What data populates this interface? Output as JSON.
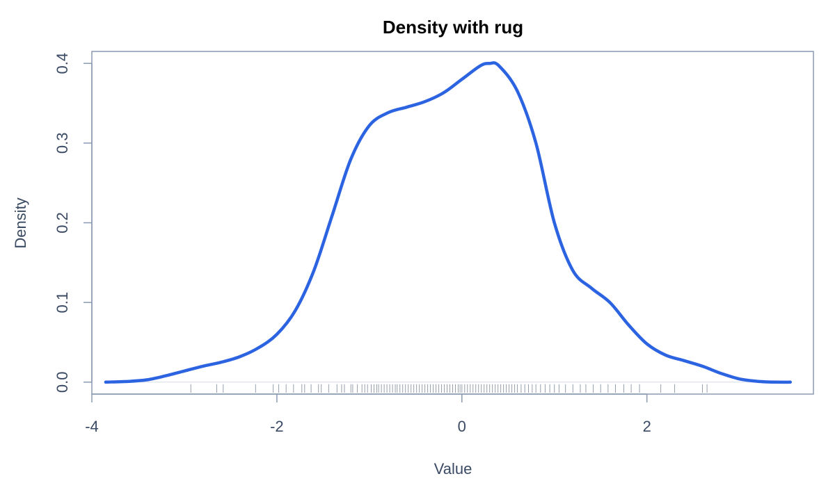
{
  "chart_data": {
    "type": "area",
    "title": "Density with rug",
    "xlabel": "Value",
    "ylabel": "Density",
    "xlim": [
      -4.0,
      3.8
    ],
    "ylim": [
      -0.015,
      0.415
    ],
    "x_ticks": [
      -4,
      -2,
      0,
      2
    ],
    "x_tick_labels": [
      "-4",
      "-2",
      "0",
      "2"
    ],
    "y_ticks": [
      0.0,
      0.1,
      0.2,
      0.3,
      0.4
    ],
    "y_tick_labels": [
      "0.0",
      "0.1",
      "0.2",
      "0.3",
      "0.4"
    ],
    "grid": false,
    "series": [
      {
        "color": "#2b63e0",
        "x": [
          -3.85,
          -3.6,
          -3.4,
          -3.2,
          -3.0,
          -2.8,
          -2.6,
          -2.4,
          -2.2,
          -2.0,
          -1.8,
          -1.6,
          -1.4,
          -1.2,
          -1.0,
          -0.8,
          -0.6,
          -0.4,
          -0.2,
          0.0,
          0.2,
          0.3,
          0.4,
          0.6,
          0.8,
          1.0,
          1.2,
          1.4,
          1.6,
          1.8,
          2.0,
          2.2,
          2.4,
          2.6,
          2.8,
          3.0,
          3.2,
          3.4,
          3.55
        ],
        "y": [
          0.0,
          0.001,
          0.003,
          0.008,
          0.014,
          0.02,
          0.025,
          0.032,
          0.043,
          0.06,
          0.09,
          0.14,
          0.21,
          0.28,
          0.322,
          0.338,
          0.345,
          0.352,
          0.363,
          0.38,
          0.397,
          0.4,
          0.397,
          0.365,
          0.3,
          0.2,
          0.14,
          0.118,
          0.1,
          0.072,
          0.048,
          0.034,
          0.027,
          0.02,
          0.011,
          0.004,
          0.001,
          0.0,
          0.0
        ]
      }
    ],
    "rug": [
      -2.93,
      -2.65,
      -2.58,
      -2.23,
      -2.04,
      -1.98,
      -1.9,
      -1.82,
      -1.73,
      -1.7,
      -1.63,
      -1.55,
      -1.52,
      -1.44,
      -1.35,
      -1.3,
      -1.27,
      -1.2,
      -1.18,
      -1.13,
      -1.08,
      -1.05,
      -1.02,
      -0.98,
      -0.95,
      -0.92,
      -0.9,
      -0.87,
      -0.84,
      -0.81,
      -0.78,
      -0.75,
      -0.72,
      -0.7,
      -0.67,
      -0.64,
      -0.61,
      -0.58,
      -0.55,
      -0.52,
      -0.49,
      -0.46,
      -0.43,
      -0.4,
      -0.37,
      -0.34,
      -0.31,
      -0.28,
      -0.25,
      -0.22,
      -0.19,
      -0.16,
      -0.13,
      -0.1,
      -0.07,
      -0.04,
      -0.02,
      0.0,
      0.03,
      0.06,
      0.09,
      0.12,
      0.15,
      0.18,
      0.21,
      0.24,
      0.27,
      0.3,
      0.33,
      0.36,
      0.39,
      0.42,
      0.45,
      0.48,
      0.51,
      0.54,
      0.57,
      0.6,
      0.64,
      0.68,
      0.72,
      0.76,
      0.8,
      0.85,
      0.9,
      0.95,
      1.0,
      1.05,
      1.12,
      1.2,
      1.28,
      1.34,
      1.42,
      1.5,
      1.58,
      1.66,
      1.75,
      1.83,
      1.92,
      2.15,
      2.3,
      2.6,
      2.65
    ]
  }
}
